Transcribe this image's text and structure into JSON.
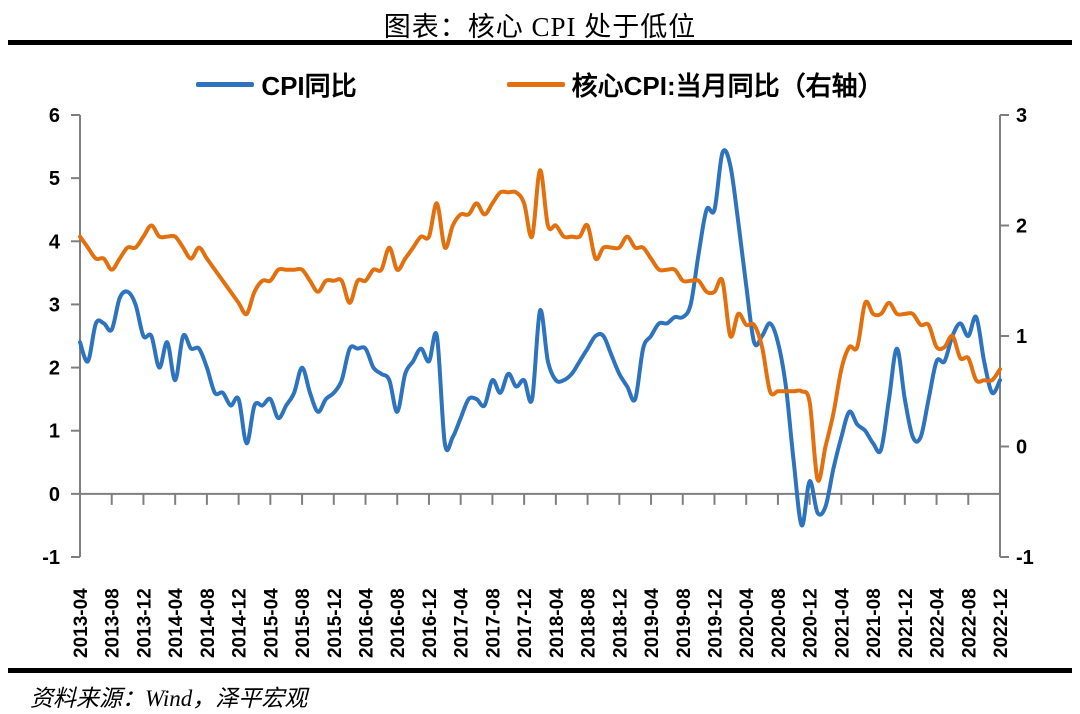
{
  "title": "图表：核心 CPI 处于低位",
  "source": "资料来源：Wind，泽平宏观",
  "chart_data": {
    "type": "line",
    "title": "图表：核心 CPI 处于低位",
    "x_start": "2013-04",
    "x_end": "2022-12",
    "x_frequency": "monthly",
    "x_labels": [
      "2013-04",
      "2013-08",
      "2013-12",
      "2014-04",
      "2014-08",
      "2014-12",
      "2015-04",
      "2015-08",
      "2015-12",
      "2016-04",
      "2016-08",
      "2016-12",
      "2017-04",
      "2017-08",
      "2017-12",
      "2018-04",
      "2018-08",
      "2018-12",
      "2019-04",
      "2019-08",
      "2019-12",
      "2020-04",
      "2020-08",
      "2020-12",
      "2021-04",
      "2021-08",
      "2021-12",
      "2022-04",
      "2022-08",
      "2022-12"
    ],
    "yticks_left": [
      "6",
      "5",
      "4",
      "3",
      "2",
      "1",
      "0",
      "-1"
    ],
    "yticks_right": [
      "3",
      "2",
      "1",
      "0",
      "-1"
    ],
    "ylim_left": [
      -1,
      6
    ],
    "ylim_right": [
      -1,
      3
    ],
    "grid": "zero-line-only",
    "legend_position": "top",
    "axis_color": "#7F7F7F",
    "series": [
      {
        "name": "CPI同比",
        "axis": "left",
        "color": "#2D73BE",
        "values": [
          2.4,
          2.1,
          2.7,
          2.7,
          2.6,
          3.1,
          3.2,
          3.0,
          2.5,
          2.5,
          2.0,
          2.4,
          1.8,
          2.5,
          2.3,
          2.3,
          2.0,
          1.6,
          1.6,
          1.4,
          1.5,
          0.8,
          1.4,
          1.4,
          1.5,
          1.2,
          1.4,
          1.6,
          2.0,
          1.6,
          1.3,
          1.5,
          1.6,
          1.8,
          2.3,
          2.3,
          2.3,
          2.0,
          1.9,
          1.8,
          1.3,
          1.9,
          2.1,
          2.3,
          2.1,
          2.5,
          0.8,
          0.9,
          1.2,
          1.5,
          1.5,
          1.4,
          1.8,
          1.6,
          1.9,
          1.7,
          1.8,
          1.5,
          2.9,
          2.1,
          1.8,
          1.8,
          1.9,
          2.1,
          2.3,
          2.5,
          2.5,
          2.2,
          1.9,
          1.7,
          1.5,
          2.3,
          2.5,
          2.7,
          2.7,
          2.8,
          2.8,
          3.0,
          3.8,
          4.5,
          4.5,
          5.4,
          5.2,
          4.3,
          3.3,
          2.4,
          2.5,
          2.7,
          2.4,
          1.7,
          0.5,
          -0.5,
          0.2,
          -0.3,
          -0.2,
          0.4,
          0.9,
          1.3,
          1.1,
          1.0,
          0.8,
          0.7,
          1.5,
          2.3,
          1.5,
          0.9,
          0.9,
          1.5,
          2.1,
          2.1,
          2.5,
          2.7,
          2.5,
          2.8,
          2.1,
          1.6,
          1.8
        ]
      },
      {
        "name": "核心CPI:当月同比（右轴）",
        "axis": "right",
        "color": "#E2700E",
        "values": [
          1.9,
          1.8,
          1.7,
          1.7,
          1.6,
          1.7,
          1.8,
          1.8,
          1.9,
          2.0,
          1.9,
          1.9,
          1.9,
          1.8,
          1.7,
          1.8,
          1.7,
          1.6,
          1.5,
          1.4,
          1.3,
          1.2,
          1.4,
          1.5,
          1.5,
          1.6,
          1.6,
          1.6,
          1.6,
          1.5,
          1.4,
          1.5,
          1.5,
          1.5,
          1.3,
          1.5,
          1.5,
          1.6,
          1.6,
          1.8,
          1.6,
          1.7,
          1.8,
          1.9,
          1.9,
          2.2,
          1.8,
          2.0,
          2.1,
          2.1,
          2.2,
          2.1,
          2.2,
          2.3,
          2.3,
          2.3,
          2.2,
          1.9,
          2.5,
          2.0,
          2.0,
          1.9,
          1.9,
          1.9,
          2.0,
          1.7,
          1.8,
          1.8,
          1.8,
          1.9,
          1.8,
          1.8,
          1.7,
          1.6,
          1.6,
          1.6,
          1.5,
          1.5,
          1.5,
          1.4,
          1.4,
          1.5,
          1.0,
          1.2,
          1.1,
          1.1,
          0.9,
          0.5,
          0.5,
          0.5,
          0.5,
          0.5,
          0.4,
          -0.3,
          0.0,
          0.3,
          0.7,
          0.9,
          0.9,
          1.3,
          1.2,
          1.2,
          1.3,
          1.2,
          1.2,
          1.2,
          1.1,
          1.1,
          0.9,
          0.9,
          1.0,
          0.8,
          0.8,
          0.6,
          0.6,
          0.6,
          0.7
        ]
      }
    ]
  }
}
